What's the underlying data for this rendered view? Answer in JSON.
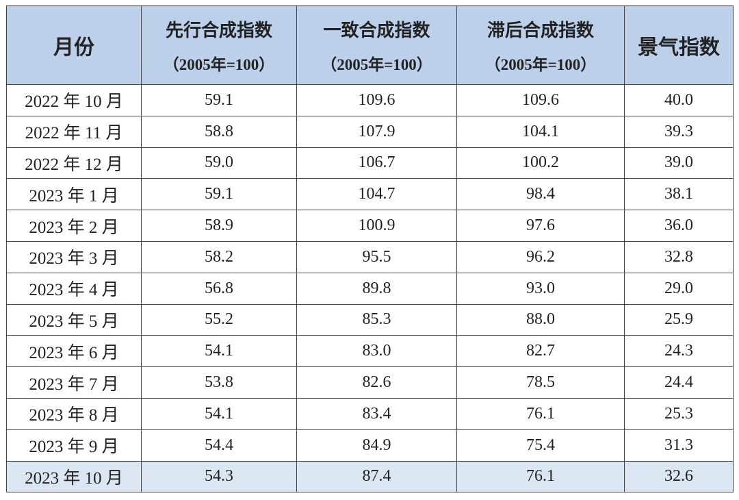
{
  "table": {
    "columns": [
      {
        "title": "月份"
      },
      {
        "title": "先行合成指数",
        "subtitle": "（2005年=100）"
      },
      {
        "title": "一致合成指数",
        "subtitle": "（2005年=100）"
      },
      {
        "title": "滞后合成指数",
        "subtitle": "（2005年=100）"
      },
      {
        "title": "景气指数"
      }
    ],
    "rows": [
      [
        "2022 年 10 月",
        "59.1",
        "109.6",
        "109.6",
        "40.0"
      ],
      [
        "2022 年 11 月",
        "58.8",
        "107.9",
        "104.1",
        "39.3"
      ],
      [
        "2022 年 12 月",
        "59.0",
        "106.7",
        "100.2",
        "39.0"
      ],
      [
        "2023 年 1 月",
        "59.1",
        "104.7",
        "98.4",
        "38.1"
      ],
      [
        "2023 年 2 月",
        "58.9",
        "100.9",
        "97.6",
        "36.0"
      ],
      [
        "2023 年 3 月",
        "58.2",
        "95.5",
        "96.2",
        "32.8"
      ],
      [
        "2023 年 4 月",
        "56.8",
        "89.8",
        "93.0",
        "29.0"
      ],
      [
        "2023 年 5 月",
        "55.2",
        "85.3",
        "88.0",
        "25.9"
      ],
      [
        "2023 年 6 月",
        "54.1",
        "83.0",
        "82.7",
        "24.3"
      ],
      [
        "2023 年 7 月",
        "53.8",
        "82.6",
        "78.5",
        "24.4"
      ],
      [
        "2023 年 8 月",
        "54.1",
        "83.4",
        "76.1",
        "25.3"
      ],
      [
        "2023 年 9 月",
        "54.4",
        "84.9",
        "75.4",
        "31.3"
      ],
      [
        "2023 年 10 月",
        "54.3",
        "87.4",
        "76.1",
        "32.6"
      ]
    ]
  }
}
